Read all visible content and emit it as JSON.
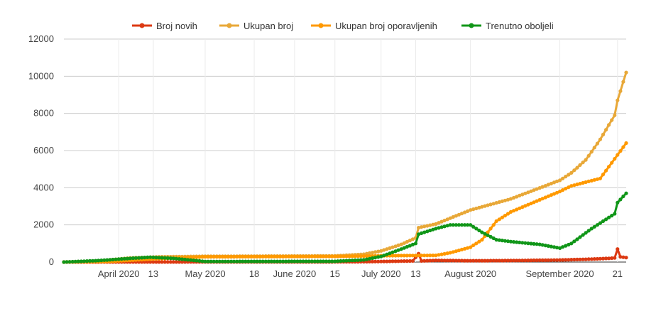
{
  "chart_data": {
    "type": "line",
    "title": "",
    "xlabel": "",
    "ylabel": "",
    "ylim": [
      0,
      12000
    ],
    "grid": true,
    "legend_position": "top",
    "y_ticks": [
      "0",
      "2000",
      "4000",
      "6000",
      "8000",
      "10000",
      "12000"
    ],
    "x_ticks": [
      {
        "label": "April 2020",
        "date": "2020-04-01"
      },
      {
        "label": "13",
        "date": "2020-04-13"
      },
      {
        "label": "May 2020",
        "date": "2020-05-01"
      },
      {
        "label": "18",
        "date": "2020-05-18"
      },
      {
        "label": "June 2020",
        "date": "2020-06-01"
      },
      {
        "label": "15",
        "date": "2020-06-15"
      },
      {
        "label": "July 2020",
        "date": "2020-07-01"
      },
      {
        "label": "13",
        "date": "2020-07-13"
      },
      {
        "label": "August 2020",
        "date": "2020-08-01"
      },
      {
        "label": "September 2020",
        "date": "2020-09-01"
      },
      {
        "label": "21",
        "date": "2020-09-21"
      }
    ],
    "x_range": [
      "2020-03-13",
      "2020-09-24"
    ],
    "series": [
      {
        "name": "Broj novih",
        "color": "#dc3912",
        "points": [
          [
            "2020-03-13",
            0
          ],
          [
            "2020-04-15",
            5
          ],
          [
            "2020-06-20",
            10
          ],
          [
            "2020-07-01",
            30
          ],
          [
            "2020-07-12",
            60
          ],
          [
            "2020-07-14",
            450
          ],
          [
            "2020-07-15",
            60
          ],
          [
            "2020-07-20",
            90
          ],
          [
            "2020-08-01",
            70
          ],
          [
            "2020-08-15",
            80
          ],
          [
            "2020-09-01",
            110
          ],
          [
            "2020-09-12",
            160
          ],
          [
            "2020-09-18",
            200
          ],
          [
            "2020-09-20",
            220
          ],
          [
            "2020-09-21",
            700
          ],
          [
            "2020-09-22",
            280
          ],
          [
            "2020-09-24",
            240
          ]
        ]
      },
      {
        "name": "Ukupan broj",
        "color": "#e8a838",
        "points": [
          [
            "2020-03-13",
            0
          ],
          [
            "2020-03-25",
            60
          ],
          [
            "2020-04-05",
            220
          ],
          [
            "2020-04-15",
            280
          ],
          [
            "2020-05-01",
            310
          ],
          [
            "2020-06-15",
            330
          ],
          [
            "2020-06-25",
            420
          ],
          [
            "2020-07-01",
            600
          ],
          [
            "2020-07-08",
            950
          ],
          [
            "2020-07-13",
            1300
          ],
          [
            "2020-07-14",
            1850
          ],
          [
            "2020-07-20",
            2050
          ],
          [
            "2020-08-01",
            2800
          ],
          [
            "2020-08-15",
            3400
          ],
          [
            "2020-09-01",
            4400
          ],
          [
            "2020-09-05",
            4800
          ],
          [
            "2020-09-10",
            5500
          ],
          [
            "2020-09-15",
            6600
          ],
          [
            "2020-09-20",
            7900
          ],
          [
            "2020-09-21",
            8700
          ],
          [
            "2020-09-24",
            10200
          ]
        ]
      },
      {
        "name": "Ukupan broj oporavljenih",
        "color": "#ff9900",
        "points": [
          [
            "2020-03-13",
            0
          ],
          [
            "2020-03-28",
            30
          ],
          [
            "2020-04-15",
            180
          ],
          [
            "2020-05-01",
            280
          ],
          [
            "2020-06-15",
            300
          ],
          [
            "2020-06-25",
            320
          ],
          [
            "2020-07-01",
            340
          ],
          [
            "2020-07-20",
            360
          ],
          [
            "2020-07-25",
            500
          ],
          [
            "2020-08-01",
            800
          ],
          [
            "2020-08-05",
            1200
          ],
          [
            "2020-08-10",
            2200
          ],
          [
            "2020-08-15",
            2700
          ],
          [
            "2020-09-01",
            3800
          ],
          [
            "2020-09-05",
            4100
          ],
          [
            "2020-09-15",
            4500
          ],
          [
            "2020-09-24",
            6400
          ]
        ]
      },
      {
        "name": "Trenutno oboljeli",
        "color": "#109618",
        "points": [
          [
            "2020-03-13",
            0
          ],
          [
            "2020-03-25",
            80
          ],
          [
            "2020-04-05",
            200
          ],
          [
            "2020-04-12",
            260
          ],
          [
            "2020-04-20",
            200
          ],
          [
            "2020-05-01",
            30
          ],
          [
            "2020-06-15",
            40
          ],
          [
            "2020-06-25",
            120
          ],
          [
            "2020-07-01",
            300
          ],
          [
            "2020-07-08",
            700
          ],
          [
            "2020-07-13",
            1000
          ],
          [
            "2020-07-14",
            1500
          ],
          [
            "2020-07-20",
            1800
          ],
          [
            "2020-07-25",
            2000
          ],
          [
            "2020-08-01",
            2000
          ],
          [
            "2020-08-05",
            1600
          ],
          [
            "2020-08-10",
            1200
          ],
          [
            "2020-08-15",
            1100
          ],
          [
            "2020-08-25",
            950
          ],
          [
            "2020-09-01",
            750
          ],
          [
            "2020-09-05",
            1000
          ],
          [
            "2020-09-12",
            1800
          ],
          [
            "2020-09-18",
            2400
          ],
          [
            "2020-09-20",
            2600
          ],
          [
            "2020-09-21",
            3200
          ],
          [
            "2020-09-24",
            3700
          ]
        ]
      }
    ]
  }
}
